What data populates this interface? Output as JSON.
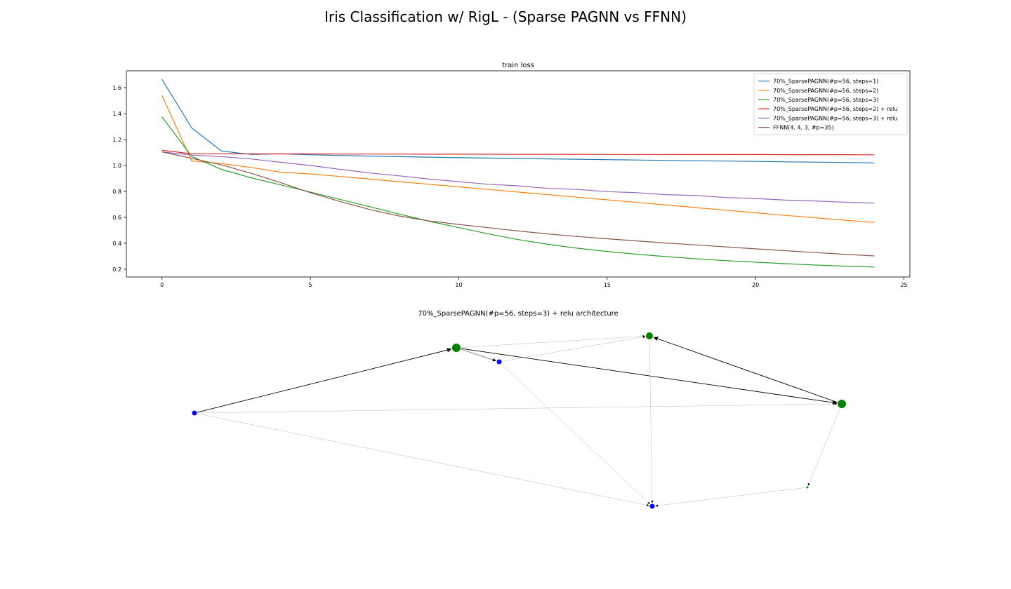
{
  "figure": {
    "suptitle": "Iris Classification w/ RigL - (Sparse PAGNN vs FFNN)"
  },
  "chart_data": [
    {
      "type": "line",
      "title": "train loss",
      "xlabel": "",
      "ylabel": "",
      "xlim": [
        -1.2,
        25.2
      ],
      "ylim": [
        0.14,
        1.73
      ],
      "xticks": [
        0,
        5,
        10,
        15,
        20,
        25
      ],
      "yticks": [
        0.2,
        0.4,
        0.6,
        0.8,
        1.0,
        1.2,
        1.4,
        1.6
      ],
      "grid": false,
      "legend_position": "top-right",
      "x": [
        0,
        1,
        2,
        3,
        4,
        5,
        6,
        7,
        8,
        9,
        10,
        11,
        12,
        13,
        14,
        15,
        16,
        17,
        18,
        19,
        20,
        21,
        22,
        23,
        24
      ],
      "series": [
        {
          "name": "70%_SparsePAGNN(#p=56, steps=1)",
          "color": "#1f77b4",
          "values": [
            1.665,
            1.29,
            1.112,
            1.085,
            1.09,
            1.082,
            1.077,
            1.072,
            1.068,
            1.064,
            1.06,
            1.057,
            1.054,
            1.051,
            1.048,
            1.045,
            1.042,
            1.039,
            1.036,
            1.034,
            1.031,
            1.028,
            1.026,
            1.023,
            1.02
          ]
        },
        {
          "name": "70%_SparsePAGNN(#p=56, steps=2)",
          "color": "#ff7f0e",
          "values": [
            1.54,
            1.035,
            1.015,
            0.985,
            0.948,
            0.935,
            0.915,
            0.895,
            0.875,
            0.855,
            0.835,
            0.815,
            0.795,
            0.775,
            0.755,
            0.735,
            0.715,
            0.695,
            0.675,
            0.655,
            0.635,
            0.615,
            0.597,
            0.578,
            0.56
          ]
        },
        {
          "name": "70%_SparsePAGNN(#p=56, steps=3)",
          "color": "#2ca02c",
          "values": [
            1.375,
            1.07,
            0.97,
            0.905,
            0.85,
            0.795,
            0.738,
            0.682,
            0.625,
            0.57,
            0.52,
            0.472,
            0.428,
            0.392,
            0.362,
            0.337,
            0.315,
            0.297,
            0.28,
            0.266,
            0.254,
            0.243,
            0.232,
            0.224,
            0.216
          ]
        },
        {
          "name": "70%_SparsePAGNN(#p=56, steps=2) + relu",
          "color": "#d62728",
          "values": [
            1.118,
            1.09,
            1.09,
            1.089,
            1.089,
            1.089,
            1.088,
            1.088,
            1.088,
            1.087,
            1.087,
            1.087,
            1.086,
            1.086,
            1.086,
            1.085,
            1.085,
            1.085,
            1.084,
            1.084,
            1.084,
            1.083,
            1.083,
            1.083,
            1.082
          ]
        },
        {
          "name": "70%_SparsePAGNN(#p=56, steps=3) + relu",
          "color": "#9467bd",
          "values": [
            1.105,
            1.08,
            1.068,
            1.05,
            1.025,
            1.0,
            0.97,
            0.942,
            0.92,
            0.895,
            0.875,
            0.855,
            0.843,
            0.823,
            0.815,
            0.798,
            0.79,
            0.775,
            0.768,
            0.753,
            0.745,
            0.733,
            0.726,
            0.717,
            0.71
          ]
        },
        {
          "name": "FFNN(4, 4, 3, #p=35)",
          "color": "#8c564b",
          "values": [
            1.105,
            1.055,
            1.005,
            0.94,
            0.868,
            0.79,
            0.722,
            0.66,
            0.61,
            0.572,
            0.545,
            0.52,
            0.495,
            0.472,
            0.452,
            0.435,
            0.418,
            0.402,
            0.387,
            0.372,
            0.357,
            0.343,
            0.328,
            0.315,
            0.302
          ]
        }
      ]
    },
    {
      "type": "network",
      "title": "70%_SparsePAGNN(#p=56, steps=3) + relu architecture",
      "node_colors": {
        "input": "#0000ff",
        "output": "#008000"
      },
      "nodes": [
        {
          "id": "n1",
          "group": "output",
          "size": "large"
        },
        {
          "id": "n2",
          "group": "output",
          "size": "medium"
        },
        {
          "id": "n3",
          "group": "output",
          "size": "large"
        },
        {
          "id": "n4",
          "group": "input",
          "size": "small"
        },
        {
          "id": "n5",
          "group": "input",
          "size": "small"
        },
        {
          "id": "n6",
          "group": "input",
          "size": "small"
        },
        {
          "id": "n7",
          "group": "output",
          "size": "tiny"
        }
      ],
      "edges": [
        {
          "source": "n4",
          "target": "n1",
          "strength": "strong"
        },
        {
          "source": "n1",
          "target": "n3",
          "strength": "strong"
        },
        {
          "source": "n3",
          "target": "n2",
          "strength": "strong"
        },
        {
          "source": "n1",
          "target": "n5",
          "strength": "medium"
        },
        {
          "source": "n1",
          "target": "n2",
          "strength": "weak"
        },
        {
          "source": "n5",
          "target": "n2",
          "strength": "weak"
        },
        {
          "source": "n4",
          "target": "n3",
          "strength": "weak"
        },
        {
          "source": "n4",
          "target": "n6",
          "strength": "weak"
        },
        {
          "source": "n5",
          "target": "n6",
          "strength": "weak"
        },
        {
          "source": "n2",
          "target": "n6",
          "strength": "weak"
        },
        {
          "source": "n3",
          "target": "n7",
          "strength": "weak"
        },
        {
          "source": "n7",
          "target": "n6",
          "strength": "weak"
        }
      ]
    }
  ]
}
